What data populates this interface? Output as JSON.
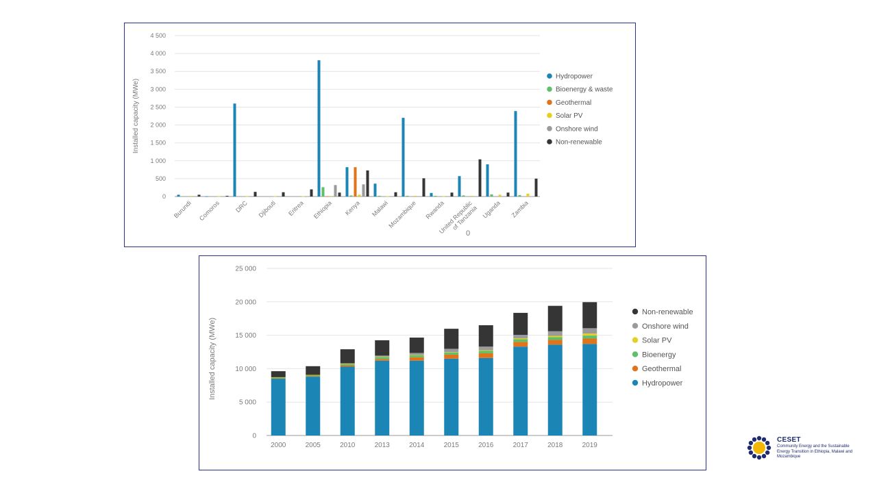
{
  "colors": {
    "hydropower": "#1b86b6",
    "bioenergy": "#5fbf6a",
    "geothermal": "#e1731b",
    "solar": "#e7cf22",
    "wind": "#9a9a9a",
    "nonrenewable": "#353535",
    "frame": "#2a2f8a",
    "axis_text": "#7a7a7a"
  },
  "chart_data": [
    {
      "type": "bar",
      "title": "",
      "xlabel": "",
      "ylabel": "Installed capacity (MWe)",
      "ylim": [
        0,
        4500
      ],
      "yticks": [
        0,
        500,
        1000,
        1500,
        2000,
        2500,
        3000,
        3500,
        4000,
        4500
      ],
      "ytick_labels": [
        "0",
        "500",
        "1 000",
        "1 500",
        "2 000",
        "2 500",
        "3 000",
        "3 500",
        "4 000",
        "4 500"
      ],
      "grid": "y",
      "legend_position": "right",
      "stray_label": "0",
      "categories": [
        "Burundi",
        "Comoros",
        "DRC",
        "Djibouti",
        "Eritrea",
        "Ethiopia",
        "Kenya",
        "Malawi",
        "Mozambique",
        "Rwanda",
        "United Republic of Tanzania",
        "Uganda",
        "Zambia"
      ],
      "category_label_lines": [
        [
          "Burundi"
        ],
        [
          "Comoros"
        ],
        [
          "DRC"
        ],
        [
          "Djibouti"
        ],
        [
          "Eritrea"
        ],
        [
          "Ethiopia"
        ],
        [
          "Kenya"
        ],
        [
          "Malawi"
        ],
        [
          "Mozambique"
        ],
        [
          "Rwanda"
        ],
        [
          "United Republic",
          "of Tanzania"
        ],
        [
          "Uganda"
        ],
        [
          "Zambia"
        ]
      ],
      "series": [
        {
          "name": "Hydropower",
          "color_key": "hydropower",
          "values": [
            50,
            5,
            2600,
            0,
            0,
            3810,
            820,
            360,
            2200,
            100,
            570,
            900,
            2390
          ]
        },
        {
          "name": "Bioenergy & waste",
          "color_key": "bioenergy",
          "values": [
            10,
            0,
            0,
            0,
            0,
            260,
            30,
            20,
            20,
            20,
            30,
            60,
            40
          ]
        },
        {
          "name": "Geothermal",
          "color_key": "geothermal",
          "values": [
            0,
            0,
            0,
            0,
            0,
            10,
            820,
            0,
            0,
            0,
            0,
            0,
            0
          ]
        },
        {
          "name": "Solar PV",
          "color_key": "solar",
          "values": [
            15,
            5,
            5,
            5,
            10,
            15,
            50,
            10,
            20,
            10,
            20,
            50,
            80
          ]
        },
        {
          "name": "Onshore wind",
          "color_key": "wind",
          "values": [
            0,
            0,
            0,
            0,
            0,
            320,
            340,
            0,
            0,
            0,
            0,
            0,
            0
          ]
        },
        {
          "name": "Non-renewable",
          "color_key": "nonrenewable",
          "values": [
            50,
            20,
            130,
            120,
            200,
            110,
            730,
            120,
            510,
            110,
            1040,
            110,
            500
          ]
        }
      ]
    },
    {
      "type": "bar",
      "stacked": true,
      "title": "",
      "xlabel": "",
      "ylabel": "Installed capacity (MWe)",
      "ylim": [
        0,
        25000
      ],
      "yticks": [
        0,
        5000,
        10000,
        15000,
        20000,
        25000
      ],
      "ytick_labels": [
        "0",
        "5 000",
        "10 000",
        "15 000",
        "20 000",
        "25 000"
      ],
      "grid": "y",
      "legend_position": "right",
      "categories": [
        "2000",
        "2005",
        "2010",
        "2013",
        "2014",
        "2015",
        "2016",
        "2017",
        "2018",
        "2019"
      ],
      "series": [
        {
          "name": "Hydropower",
          "color_key": "hydropower",
          "values": [
            8500,
            8800,
            10300,
            11200,
            11200,
            11500,
            11600,
            13300,
            13600,
            13700
          ]
        },
        {
          "name": "Geothermal",
          "color_key": "geothermal",
          "values": [
            50,
            100,
            200,
            250,
            500,
            600,
            700,
            700,
            700,
            800
          ]
        },
        {
          "name": "Bioenergy",
          "color_key": "bioenergy",
          "values": [
            150,
            150,
            200,
            300,
            300,
            300,
            350,
            400,
            400,
            450
          ]
        },
        {
          "name": "Solar PV",
          "color_key": "solar",
          "values": [
            20,
            20,
            50,
            50,
            50,
            70,
            100,
            150,
            200,
            300
          ]
        },
        {
          "name": "Onshore wind",
          "color_key": "wind",
          "values": [
            0,
            0,
            50,
            150,
            300,
            500,
            550,
            500,
            700,
            800
          ]
        },
        {
          "name": "Non-renewable",
          "color_key": "nonrenewable",
          "values": [
            900,
            1300,
            2100,
            2300,
            2300,
            3000,
            3200,
            3300,
            3800,
            3900
          ]
        }
      ],
      "legend_order": [
        "Non-renewable",
        "Onshore wind",
        "Solar PV",
        "Bioenergy",
        "Geothermal",
        "Hydropower"
      ]
    }
  ],
  "logo": {
    "title": "CESET",
    "subtitle": "Community Energy and the Sustainable Energy Transition in Ethiopia, Malawi and Mozambique"
  }
}
